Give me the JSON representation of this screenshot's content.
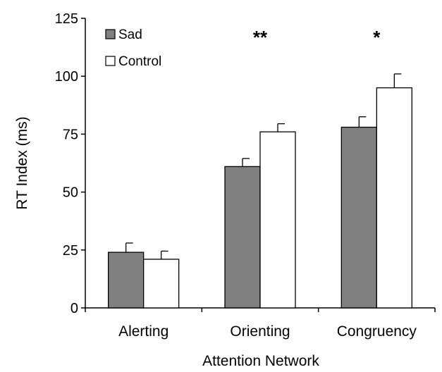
{
  "chart_data": {
    "type": "bar",
    "xlabel": "Attention Network",
    "ylabel": "RT Index (ms)",
    "ylim": [
      0,
      125
    ],
    "yticks": [
      0,
      25,
      50,
      75,
      100,
      125
    ],
    "categories": [
      "Alerting",
      "Orienting",
      "Congruency"
    ],
    "series": [
      {
        "name": "Sad",
        "values": [
          24,
          61,
          78
        ],
        "errors": [
          4,
          3.5,
          4.5
        ],
        "color": "#808080"
      },
      {
        "name": "Control",
        "values": [
          21,
          76,
          95
        ],
        "errors": [
          3.5,
          3.5,
          6
        ],
        "color": "#ffffff"
      }
    ],
    "significance": [
      "",
      "**",
      "*"
    ],
    "legend_placement": "top-left",
    "grid": false
  }
}
